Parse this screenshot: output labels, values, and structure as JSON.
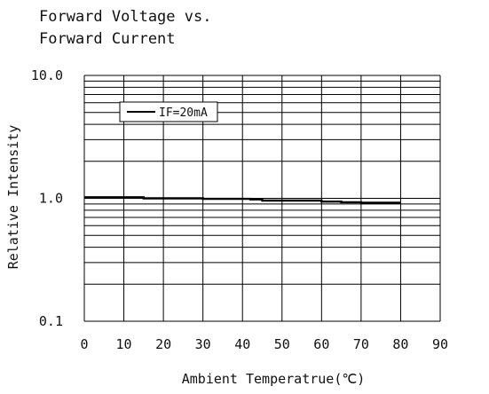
{
  "chart_data": {
    "type": "line",
    "title": "Forward Voltage vs.\nForward Current",
    "xlabel": "Ambient Temperatrue(℃)",
    "ylabel": "Relative Intensity",
    "xlim": [
      0,
      90
    ],
    "ylim": [
      0.1,
      10.0
    ],
    "yscale": "log",
    "grid": true,
    "x_ticks": [
      0,
      10,
      20,
      30,
      40,
      50,
      60,
      70,
      80,
      90
    ],
    "x_tick_labels": [
      "0",
      "10",
      "20",
      "30",
      "40",
      "50",
      "60",
      "70",
      "80",
      "90"
    ],
    "y_major_ticks": [
      0.1,
      1.0,
      10.0
    ],
    "y_tick_labels": [
      "0.1",
      "1.0",
      "10.0"
    ],
    "legend_position": "top-left",
    "series": [
      {
        "name": "IF=20mA",
        "color": "#000000",
        "x": [
          0,
          15,
          15,
          30,
          30,
          42,
          42,
          45,
          45,
          60,
          60,
          65,
          65,
          70,
          70,
          80
        ],
        "y": [
          1.02,
          1.02,
          1.0,
          1.0,
          0.99,
          0.99,
          0.98,
          0.98,
          0.96,
          0.96,
          0.94,
          0.94,
          0.93,
          0.93,
          0.92,
          0.92
        ]
      }
    ]
  }
}
